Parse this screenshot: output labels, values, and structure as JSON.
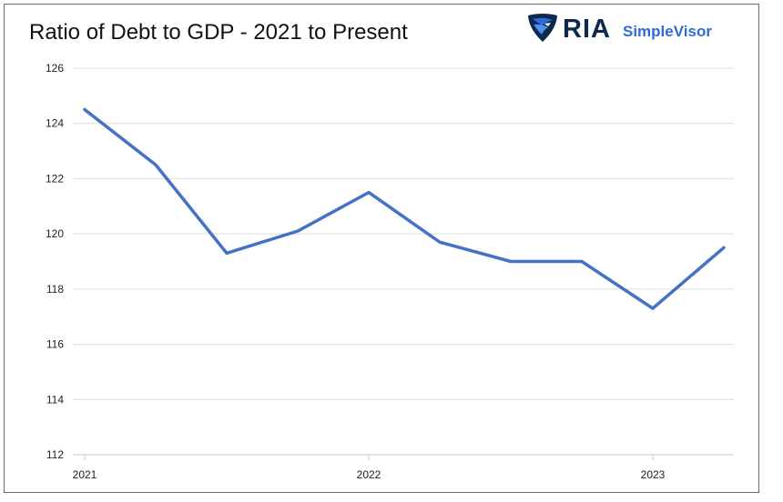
{
  "brand": {
    "name": "RIA",
    "product": "SimpleVisor",
    "logo_icon": "eagle-shield-icon",
    "colors": {
      "ria": "#0d2a4d",
      "simplevisor": "#2f6bd8"
    }
  },
  "chart_data": {
    "type": "line",
    "title": "Ratio of Debt to GDP - 2021 to Present",
    "xlabel": "",
    "ylabel": "",
    "x": [
      "2021-Q1",
      "2021-Q2",
      "2021-Q3",
      "2021-Q4",
      "2022-Q1",
      "2022-Q2",
      "2022-Q3",
      "2022-Q4",
      "2023-Q1",
      "2023-Q2"
    ],
    "x_tick_labels": [
      "2021",
      "2022",
      "2023"
    ],
    "x_tick_index": [
      0,
      4,
      8
    ],
    "series": [
      {
        "values": [
          124.5,
          122.5,
          119.3,
          120.1,
          121.5,
          119.7,
          119.0,
          119.0,
          117.3,
          119.5
        ],
        "color": "#4472c4"
      }
    ],
    "ylim": [
      112,
      126
    ],
    "y_ticks": [
      112,
      114,
      116,
      118,
      120,
      122,
      124,
      126
    ],
    "grid": true,
    "legend": "none"
  }
}
